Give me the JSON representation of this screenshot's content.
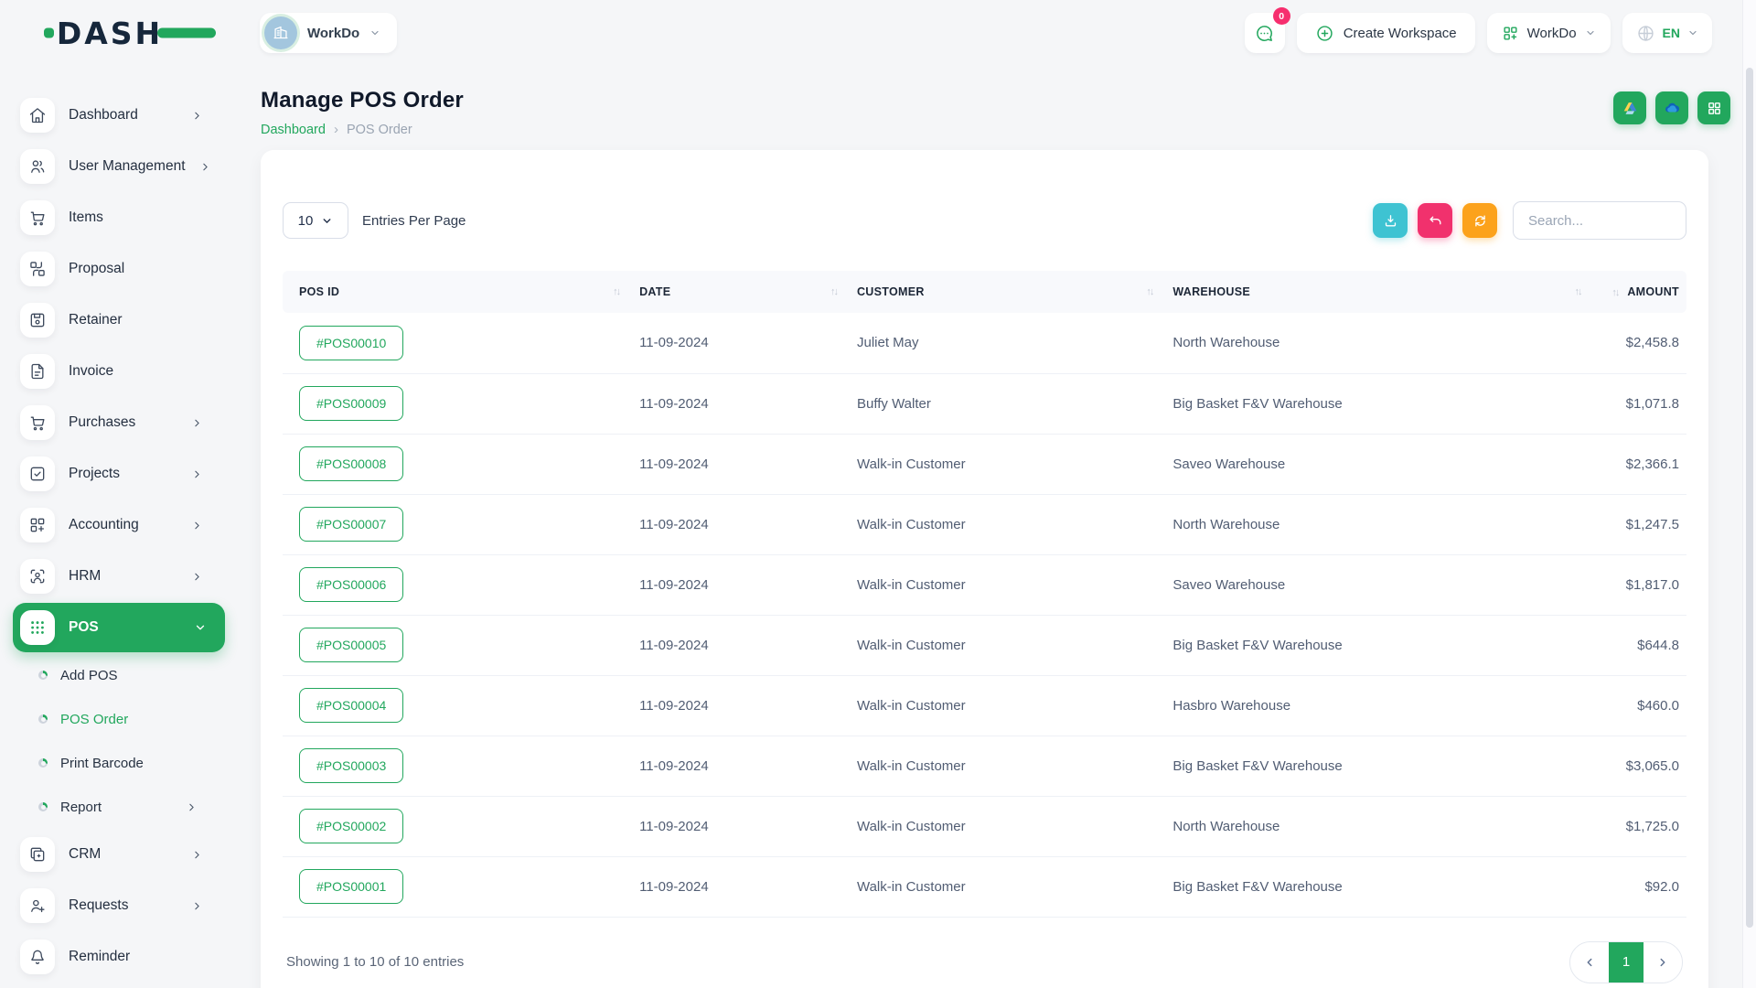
{
  "brand": {
    "logo_text": "DASH"
  },
  "topbar": {
    "workspace_label": "WorkDo",
    "chat_badge": "0",
    "create_workspace_label": "Create Workspace",
    "workspace_switcher_label": "WorkDo",
    "language": "EN"
  },
  "sidebar": {
    "items": [
      {
        "label": "Dashboard",
        "icon": "home-icon",
        "chevron": "right"
      },
      {
        "label": "User Management",
        "icon": "users-icon",
        "chevron": "right"
      },
      {
        "label": "Items",
        "icon": "cart-icon",
        "chevron": ""
      },
      {
        "label": "Proposal",
        "icon": "swap-icon",
        "chevron": ""
      },
      {
        "label": "Retainer",
        "icon": "save-icon",
        "chevron": ""
      },
      {
        "label": "Invoice",
        "icon": "file-text-icon",
        "chevron": ""
      },
      {
        "label": "Purchases",
        "icon": "cart-icon",
        "chevron": "right"
      },
      {
        "label": "Projects",
        "icon": "check-square-icon",
        "chevron": "right"
      },
      {
        "label": "Accounting",
        "icon": "grid-plus-icon",
        "chevron": "right"
      },
      {
        "label": "HRM",
        "icon": "person-scan-icon",
        "chevron": "right"
      },
      {
        "label": "POS",
        "icon": "dots-grid-icon",
        "chevron": "down",
        "active": true,
        "children": [
          {
            "label": "Add POS",
            "active": false,
            "chevron": ""
          },
          {
            "label": "POS Order",
            "active": true,
            "chevron": ""
          },
          {
            "label": "Print Barcode",
            "active": false,
            "chevron": ""
          },
          {
            "label": "Report",
            "active": false,
            "chevron": "right"
          }
        ]
      },
      {
        "label": "CRM",
        "icon": "cards-icon",
        "chevron": "right"
      },
      {
        "label": "Requests",
        "icon": "user-plus-icon",
        "chevron": "right"
      },
      {
        "label": "Reminder",
        "icon": "bell-icon",
        "chevron": ""
      }
    ]
  },
  "page": {
    "title": "Manage POS Order",
    "breadcrumb_home": "Dashboard",
    "breadcrumb_current": "POS Order"
  },
  "controls": {
    "entries_value": "10",
    "entries_label": "Entries Per Page",
    "search_placeholder": "Search..."
  },
  "table": {
    "columns": [
      "POS ID",
      "DATE",
      "CUSTOMER",
      "WAREHOUSE",
      "AMOUNT"
    ],
    "rows": [
      {
        "pos_id": "#POS00010",
        "date": "11-09-2024",
        "customer": "Juliet May",
        "warehouse": "North Warehouse",
        "amount": "$2,458.8"
      },
      {
        "pos_id": "#POS00009",
        "date": "11-09-2024",
        "customer": "Buffy Walter",
        "warehouse": "Big Basket F&V Warehouse",
        "amount": "$1,071.8"
      },
      {
        "pos_id": "#POS00008",
        "date": "11-09-2024",
        "customer": "Walk-in Customer",
        "warehouse": "Saveo Warehouse",
        "amount": "$2,366.1"
      },
      {
        "pos_id": "#POS00007",
        "date": "11-09-2024",
        "customer": "Walk-in Customer",
        "warehouse": "North Warehouse",
        "amount": "$1,247.5"
      },
      {
        "pos_id": "#POS00006",
        "date": "11-09-2024",
        "customer": "Walk-in Customer",
        "warehouse": "Saveo Warehouse",
        "amount": "$1,817.0"
      },
      {
        "pos_id": "#POS00005",
        "date": "11-09-2024",
        "customer": "Walk-in Customer",
        "warehouse": "Big Basket F&V Warehouse",
        "amount": "$644.8"
      },
      {
        "pos_id": "#POS00004",
        "date": "11-09-2024",
        "customer": "Walk-in Customer",
        "warehouse": "Hasbro Warehouse",
        "amount": "$460.0"
      },
      {
        "pos_id": "#POS00003",
        "date": "11-09-2024",
        "customer": "Walk-in Customer",
        "warehouse": "Big Basket F&V Warehouse",
        "amount": "$3,065.0"
      },
      {
        "pos_id": "#POS00002",
        "date": "11-09-2024",
        "customer": "Walk-in Customer",
        "warehouse": "North Warehouse",
        "amount": "$1,725.0"
      },
      {
        "pos_id": "#POS00001",
        "date": "11-09-2024",
        "customer": "Walk-in Customer",
        "warehouse": "Big Basket F&V Warehouse",
        "amount": "$92.0"
      }
    ],
    "footer": {
      "showing_text": "Showing 1 to 10 of 10 entries",
      "current_page": "1"
    }
  },
  "colors": {
    "primary_green": "#22a75d",
    "teal": "#3ec3d2",
    "pink": "#f1316d",
    "orange": "#fca21b"
  }
}
